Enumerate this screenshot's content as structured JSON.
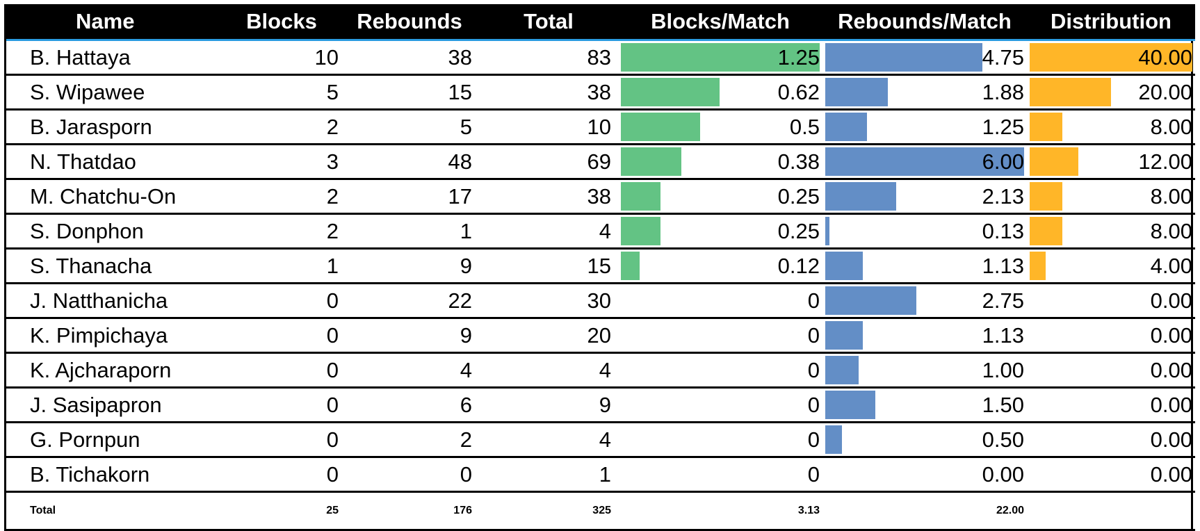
{
  "table": {
    "headers": [
      "Name",
      "Blocks",
      "Rebounds",
      "Total",
      "Blocks/Match",
      "Rebounds/Match",
      "Distribution"
    ],
    "colors": {
      "header_bg": "#000000",
      "header_text": "#ffffff",
      "blocks_bar": "#63c384",
      "rebounds_bar": "#638ec6",
      "distribution_bar": "#ffb628"
    },
    "bar_max": {
      "blocks_per_match": 1.25,
      "rebounds_per_match": 6.0,
      "distribution": 40.0
    },
    "rows": [
      {
        "name": "B. Hattaya",
        "blocks": "10",
        "rebounds": "38",
        "total": "83",
        "bpm": "1.25",
        "rpm": "4.75",
        "dist": "40.00"
      },
      {
        "name": "S. Wipawee",
        "blocks": "5",
        "rebounds": "15",
        "total": "38",
        "bpm": "0.62",
        "rpm": "1.88",
        "dist": "20.00"
      },
      {
        "name": "B. Jarasporn",
        "blocks": "2",
        "rebounds": "5",
        "total": "10",
        "bpm": "0.5",
        "rpm": "1.25",
        "dist": "8.00"
      },
      {
        "name": "N. Thatdao",
        "blocks": "3",
        "rebounds": "48",
        "total": "69",
        "bpm": "0.38",
        "rpm": "6.00",
        "dist": "12.00"
      },
      {
        "name": "M. Chatchu-On",
        "blocks": "2",
        "rebounds": "17",
        "total": "38",
        "bpm": "0.25",
        "rpm": "2.13",
        "dist": "8.00"
      },
      {
        "name": "S. Donphon",
        "blocks": "2",
        "rebounds": "1",
        "total": "4",
        "bpm": "0.25",
        "rpm": "0.13",
        "dist": "8.00"
      },
      {
        "name": "S. Thanacha",
        "blocks": "1",
        "rebounds": "9",
        "total": "15",
        "bpm": "0.12",
        "rpm": "1.13",
        "dist": "4.00"
      },
      {
        "name": "J. Natthanicha",
        "blocks": "0",
        "rebounds": "22",
        "total": "30",
        "bpm": "0",
        "rpm": "2.75",
        "dist": "0.00"
      },
      {
        "name": "K. Pimpichaya",
        "blocks": "0",
        "rebounds": "9",
        "total": "20",
        "bpm": "0",
        "rpm": "1.13",
        "dist": "0.00"
      },
      {
        "name": "K. Ajcharaporn",
        "blocks": "0",
        "rebounds": "4",
        "total": "4",
        "bpm": "0",
        "rpm": "1.00",
        "dist": "0.00"
      },
      {
        "name": "J. Sasipapron",
        "blocks": "0",
        "rebounds": "6",
        "total": "9",
        "bpm": "0",
        "rpm": "1.50",
        "dist": "0.00"
      },
      {
        "name": "G. Pornpun",
        "blocks": "0",
        "rebounds": "2",
        "total": "4",
        "bpm": "0",
        "rpm": "0.50",
        "dist": "0.00"
      },
      {
        "name": "B. Tichakorn",
        "blocks": "0",
        "rebounds": "0",
        "total": "1",
        "bpm": "0",
        "rpm": "0.00",
        "dist": "0.00"
      }
    ],
    "totals": {
      "label": "Total",
      "blocks": "25",
      "rebounds": "176",
      "total": "325",
      "bpm": "3.13",
      "rpm": "22.00",
      "dist": ""
    }
  }
}
